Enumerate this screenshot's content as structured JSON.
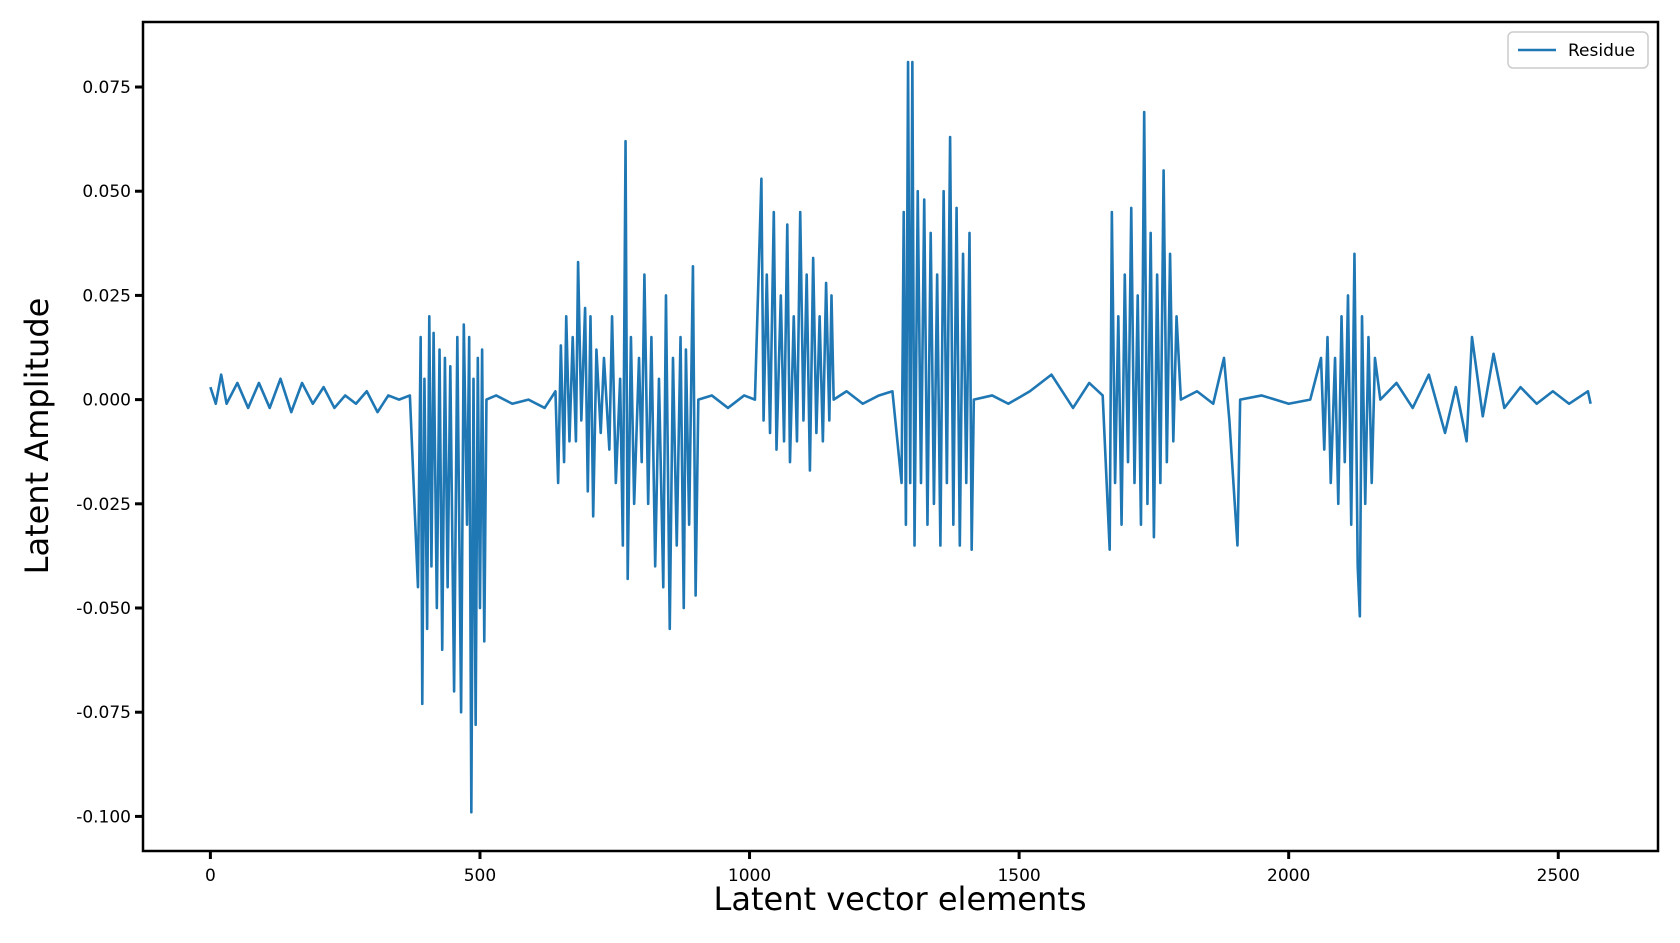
{
  "chart_data": {
    "type": "line",
    "xlabel": "Latent vector elements",
    "ylabel": "Latent Amplitude",
    "xlim": [
      -125,
      2685
    ],
    "ylim": [
      -0.1083,
      0.0906
    ],
    "xticks": [
      0,
      500,
      1000,
      1500,
      2000,
      2500
    ],
    "yticks": [
      {
        "value": -0.1,
        "label": "-0.100"
      },
      {
        "value": -0.075,
        "label": "-0.075"
      },
      {
        "value": -0.05,
        "label": "-0.050"
      },
      {
        "value": -0.025,
        "label": "-0.025"
      },
      {
        "value": 0,
        "label": "0.000"
      },
      {
        "value": 0.025,
        "label": "0.025"
      },
      {
        "value": 0.05,
        "label": "0.050"
      },
      {
        "value": 0.075,
        "label": "0.075"
      }
    ],
    "legend": "upper right",
    "grid": false,
    "x": [
      0,
      10,
      20,
      30,
      50,
      70,
      90,
      110,
      130,
      150,
      170,
      190,
      210,
      230,
      250,
      270,
      290,
      310,
      330,
      350,
      370,
      385,
      390,
      393,
      397,
      402,
      406,
      410,
      414,
      420,
      425,
      430,
      435,
      440,
      445,
      452,
      458,
      465,
      470,
      476,
      480,
      484,
      488,
      492,
      496,
      500,
      504,
      508,
      512,
      530,
      560,
      590,
      620,
      640,
      645,
      650,
      656,
      660,
      666,
      672,
      678,
      682,
      688,
      695,
      700,
      705,
      710,
      716,
      724,
      730,
      740,
      745,
      752,
      760,
      765,
      770,
      774,
      780,
      786,
      795,
      800,
      805,
      812,
      818,
      825,
      832,
      840,
      845,
      852,
      858,
      865,
      872,
      878,
      882,
      888,
      895,
      900,
      905,
      930,
      960,
      990,
      1010,
      1022,
      1026,
      1032,
      1038,
      1045,
      1050,
      1058,
      1064,
      1070,
      1075,
      1082,
      1088,
      1094,
      1100,
      1106,
      1112,
      1118,
      1124,
      1130,
      1136,
      1142,
      1148,
      1152,
      1156,
      1180,
      1210,
      1240,
      1265,
      1282,
      1286,
      1290,
      1294,
      1298,
      1302,
      1306,
      1312,
      1318,
      1324,
      1330,
      1336,
      1342,
      1348,
      1354,
      1360,
      1366,
      1372,
      1378,
      1384,
      1390,
      1396,
      1402,
      1408,
      1412,
      1416,
      1450,
      1480,
      1520,
      1560,
      1600,
      1630,
      1655,
      1668,
      1672,
      1678,
      1684,
      1690,
      1696,
      1702,
      1708,
      1714,
      1720,
      1726,
      1732,
      1738,
      1744,
      1750,
      1756,
      1762,
      1768,
      1774,
      1780,
      1786,
      1792,
      1800,
      1830,
      1860,
      1880,
      1890,
      1905,
      1910,
      1950,
      2000,
      2040,
      2060,
      2066,
      2072,
      2078,
      2086,
      2092,
      2098,
      2104,
      2110,
      2116,
      2122,
      2128,
      2132,
      2136,
      2142,
      2148,
      2154,
      2160,
      2170,
      2200,
      2230,
      2260,
      2290,
      2310,
      2330,
      2340,
      2360,
      2380,
      2400,
      2430,
      2460,
      2490,
      2520,
      2555,
      2560
    ],
    "series": [
      {
        "name": "Residue",
        "color": "#1f77b4",
        "values": [
          0.003,
          -0.001,
          0.006,
          -0.001,
          0.004,
          -0.002,
          0.004,
          -0.002,
          0.005,
          -0.003,
          0.004,
          -0.001,
          0.003,
          -0.002,
          0.001,
          -0.001,
          0.002,
          -0.003,
          0.001,
          0,
          0.001,
          -0.045,
          0.015,
          -0.073,
          0.005,
          -0.055,
          0.02,
          -0.04,
          0.016,
          -0.05,
          0.012,
          -0.06,
          0.01,
          -0.045,
          0.008,
          -0.07,
          0.015,
          -0.075,
          0.018,
          -0.03,
          0.015,
          -0.099,
          0.005,
          -0.078,
          0.01,
          -0.05,
          0.012,
          -0.058,
          0,
          0.001,
          -0.001,
          0,
          -0.002,
          0.002,
          -0.02,
          0.013,
          -0.015,
          0.02,
          -0.01,
          0.015,
          -0.01,
          0.033,
          -0.005,
          0.022,
          -0.022,
          0.02,
          -0.028,
          0.012,
          -0.008,
          0.01,
          -0.012,
          0.02,
          -0.02,
          0.005,
          -0.035,
          0.062,
          -0.043,
          0.015,
          -0.025,
          0.01,
          -0.015,
          0.03,
          -0.025,
          0.015,
          -0.04,
          0.005,
          -0.045,
          0.025,
          -0.055,
          0.01,
          -0.035,
          0.015,
          -0.05,
          0.012,
          -0.03,
          0.032,
          -0.047,
          0,
          0.001,
          -0.002,
          0.001,
          0,
          0.053,
          -0.005,
          0.03,
          -0.008,
          0.045,
          -0.012,
          0.025,
          -0.01,
          0.042,
          -0.015,
          0.02,
          -0.01,
          0.045,
          -0.005,
          0.03,
          -0.017,
          0.034,
          -0.008,
          0.02,
          -0.01,
          0.028,
          -0.005,
          0.025,
          0,
          0.002,
          -0.001,
          0.001,
          0.002,
          -0.02,
          0.045,
          -0.03,
          0.081,
          -0.02,
          0.081,
          -0.035,
          0.05,
          -0.02,
          0.048,
          -0.03,
          0.04,
          -0.025,
          0.03,
          -0.035,
          0.05,
          -0.02,
          0.063,
          -0.03,
          0.046,
          -0.035,
          0.035,
          -0.02,
          0.04,
          -0.036,
          0,
          0.001,
          -0.001,
          0.002,
          0.006,
          -0.002,
          0.004,
          0.001,
          -0.036,
          0.045,
          -0.02,
          0.02,
          -0.03,
          0.03,
          -0.015,
          0.046,
          -0.02,
          0.025,
          -0.03,
          0.069,
          -0.025,
          0.04,
          -0.033,
          0.03,
          -0.02,
          0.055,
          -0.015,
          0.035,
          -0.01,
          0.02,
          0,
          0.002,
          -0.001,
          0.01,
          -0.005,
          -0.035,
          0,
          0.001,
          -0.001,
          0,
          0.01,
          -0.012,
          0.015,
          -0.02,
          0.01,
          -0.025,
          0.02,
          -0.015,
          0.025,
          -0.03,
          0.035,
          -0.04,
          -0.052,
          0.02,
          -0.025,
          0.015,
          -0.02,
          0.01,
          0,
          0.004,
          -0.002,
          0.006,
          -0.008,
          0.003,
          -0.01,
          0.015,
          -0.004,
          0.011,
          -0.002,
          0.003,
          -0.001,
          0.002,
          -0.001,
          0.002,
          -0.001
        ]
      }
    ]
  }
}
